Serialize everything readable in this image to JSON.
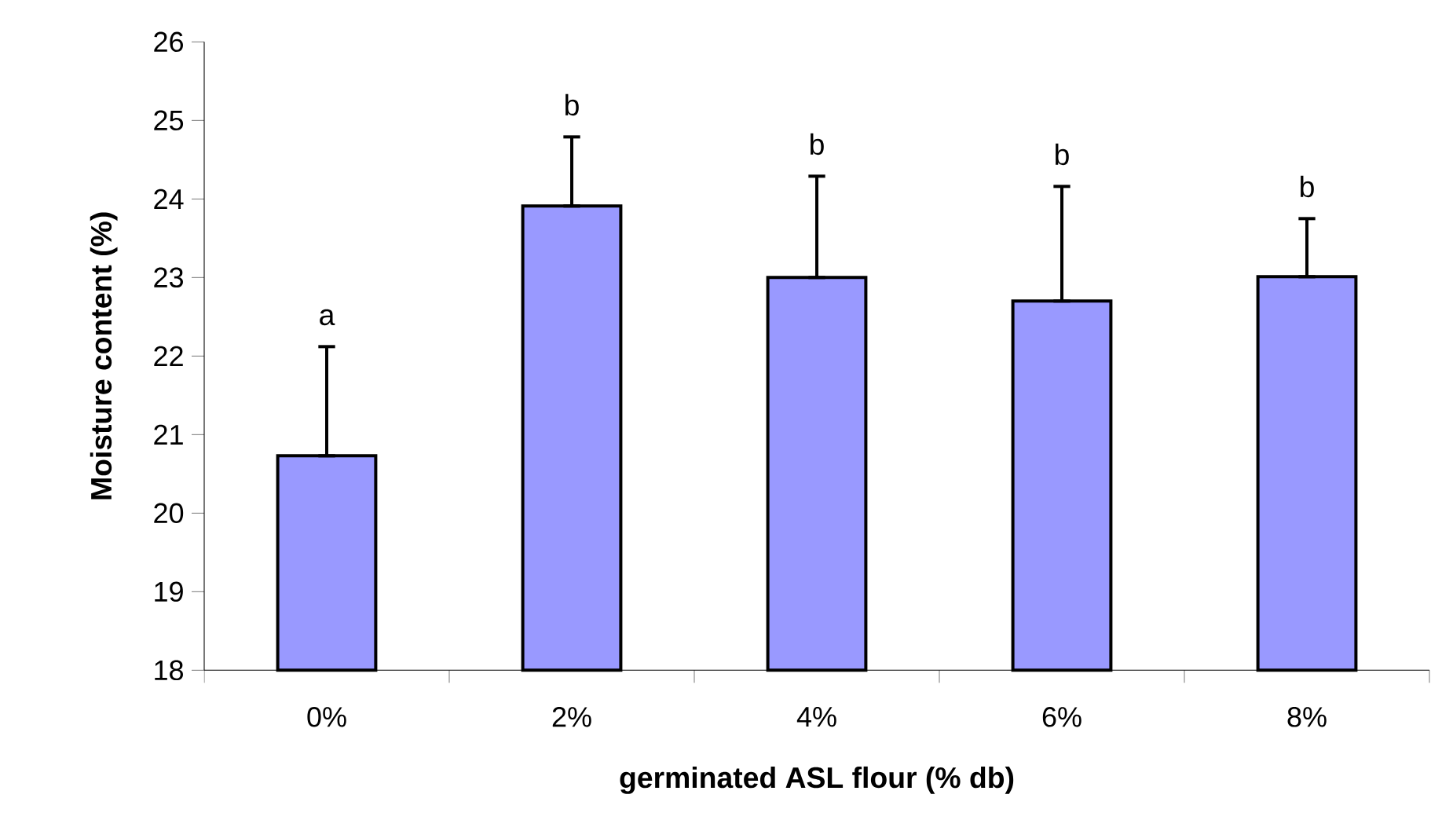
{
  "chart_data": {
    "type": "bar",
    "xlabel": "germinated ASL flour (% db)",
    "ylabel": "Moisture content (%)",
    "categories": [
      "0%",
      "2%",
      "4%",
      "6%",
      "8%"
    ],
    "values": [
      20.73,
      23.91,
      23.0,
      22.7,
      23.01
    ],
    "errors": [
      [
        20.73,
        22.12
      ],
      [
        23.91,
        24.79
      ],
      [
        23.0,
        24.29
      ],
      [
        22.7,
        24.16
      ],
      [
        23.01,
        23.75
      ]
    ],
    "color": "#9999ff",
    "ylim": [
      18,
      26
    ],
    "yticks": [
      18,
      19,
      20,
      21,
      22,
      23,
      24,
      25,
      26
    ],
    "annotations": [
      "a",
      "b",
      "b",
      "b",
      "b"
    ]
  }
}
